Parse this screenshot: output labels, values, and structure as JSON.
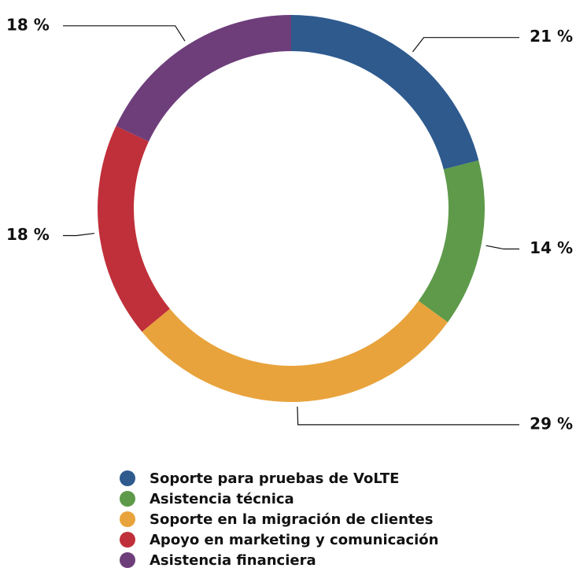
{
  "chart_data": {
    "type": "pie",
    "categories": [
      "Soporte para pruebas de VoLTE",
      "Asistencia técnica",
      "Soporte en la migración de clientes",
      "Apoyo en marketing y comunicación",
      "Asistencia financiera"
    ],
    "values": [
      21,
      14,
      29,
      18,
      18
    ],
    "value_labels": [
      "21 %",
      "14 %",
      "29 %",
      "18 %",
      "18 %"
    ],
    "colors": [
      "#2e5a8e",
      "#5e9a4a",
      "#e8a33c",
      "#c0303a",
      "#6e3e7b"
    ]
  }
}
